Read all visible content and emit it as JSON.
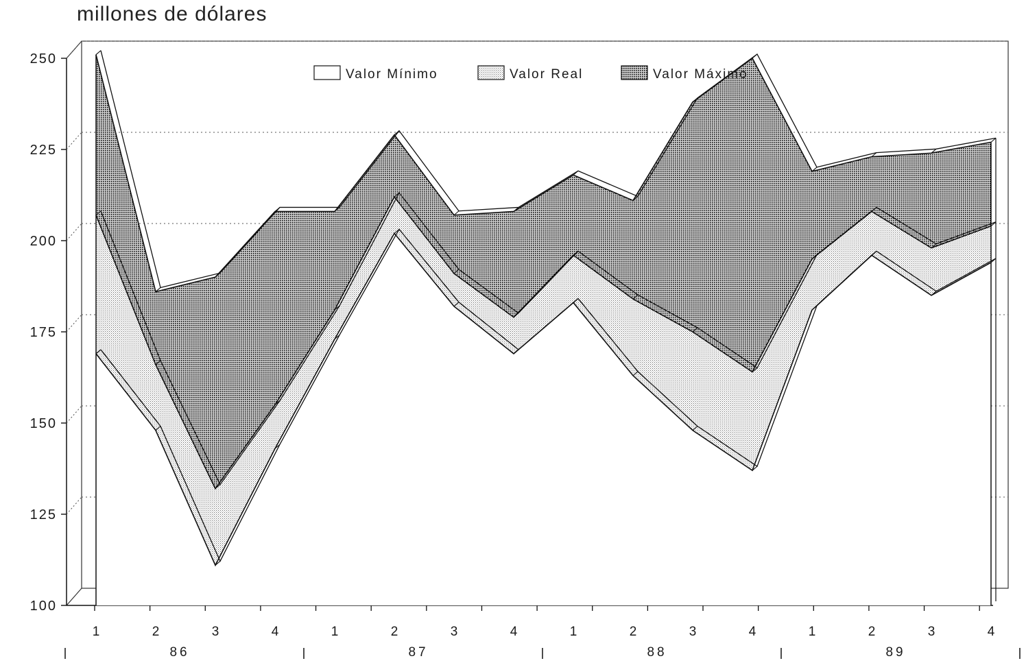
{
  "chart_data": {
    "type": "area",
    "title": "millones de dólares",
    "ylim": [
      100,
      250
    ],
    "yticks": [
      100,
      125,
      150,
      175,
      200,
      225,
      250
    ],
    "ytick_labels": [
      "100",
      "125",
      "150",
      "175",
      "200",
      "225",
      "250"
    ],
    "grid": true,
    "legend_position": "top",
    "x_quarters": [
      "1",
      "2",
      "3",
      "4",
      "1",
      "2",
      "3",
      "4",
      "1",
      "2",
      "3",
      "4",
      "1",
      "2",
      "3",
      "4"
    ],
    "x_years": [
      "86",
      "87",
      "88",
      "89"
    ],
    "series": [
      {
        "name": "Valor Mínimo",
        "values": [
          169,
          148,
          111,
          143,
          173,
          202,
          182,
          169,
          183,
          163,
          148,
          137,
          181,
          196,
          185,
          194
        ]
      },
      {
        "name": "Valor Real",
        "values": [
          207,
          166,
          132,
          155,
          181,
          212,
          191,
          179,
          196,
          184,
          175,
          164,
          195,
          208,
          198,
          204
        ]
      },
      {
        "name": "Valor Máximo",
        "values": [
          251,
          186,
          190,
          208,
          208,
          229,
          207,
          208,
          218,
          211,
          238,
          250,
          219,
          223,
          224,
          227
        ]
      }
    ],
    "colors": {
      "Valor Mínimo": "#ffffff",
      "Valor Real": "#c8c8c8",
      "Valor Máximo": "#555555"
    }
  }
}
